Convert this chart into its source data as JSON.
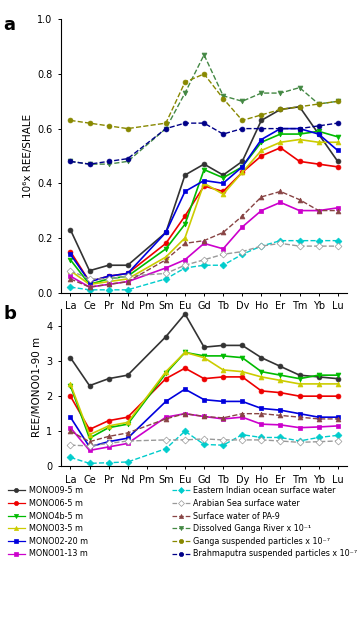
{
  "elements": [
    "La",
    "Ce",
    "Pr",
    "Nd",
    "Pm",
    "Sm",
    "Eu",
    "Gd",
    "Tb",
    "Dy",
    "Ho",
    "Er",
    "Tm",
    "Yb",
    "Lu"
  ],
  "panel_a": {
    "ylabel": "10⁶x REE/SHALE",
    "ylim": [
      0,
      1.0
    ],
    "yticks": [
      0.0,
      0.2,
      0.4,
      0.6,
      0.8,
      1.0
    ],
    "series": {
      "MONO09_5m": [
        0.23,
        0.08,
        0.1,
        0.1,
        null,
        0.22,
        0.43,
        0.47,
        0.43,
        0.48,
        0.63,
        0.67,
        0.68,
        0.58,
        0.48
      ],
      "MONO06_5m": [
        0.15,
        0.04,
        0.06,
        0.07,
        null,
        0.18,
        0.28,
        0.39,
        0.37,
        0.44,
        0.5,
        0.53,
        0.48,
        0.47,
        0.46
      ],
      "MONO4b_5m": [
        0.12,
        0.03,
        0.05,
        0.06,
        null,
        0.16,
        0.25,
        0.45,
        0.42,
        0.46,
        0.55,
        0.58,
        0.58,
        0.59,
        0.57
      ],
      "MONO03_5m": [
        0.08,
        0.03,
        0.04,
        0.05,
        null,
        0.13,
        0.2,
        0.4,
        0.36,
        0.44,
        0.52,
        0.55,
        0.56,
        0.55,
        0.55
      ],
      "MONO02_20m": [
        0.14,
        0.04,
        0.06,
        0.07,
        null,
        0.22,
        0.37,
        0.41,
        0.4,
        0.46,
        0.56,
        0.6,
        0.6,
        0.58,
        0.52
      ],
      "MONO01_13m": [
        0.06,
        0.02,
        0.03,
        0.04,
        null,
        0.09,
        0.12,
        0.18,
        0.16,
        0.24,
        0.3,
        0.33,
        0.3,
        0.3,
        0.31
      ],
      "EasternIndian": [
        0.02,
        0.01,
        0.01,
        0.01,
        null,
        0.05,
        0.09,
        0.1,
        0.1,
        0.14,
        0.17,
        0.19,
        0.19,
        0.19,
        0.19
      ],
      "ArabianSea": [
        0.08,
        0.05,
        0.05,
        0.06,
        null,
        0.07,
        0.1,
        0.12,
        0.14,
        0.15,
        0.17,
        0.18,
        0.17,
        0.17,
        0.17
      ],
      "PA9": [
        0.05,
        0.02,
        0.03,
        0.04,
        null,
        0.12,
        0.18,
        0.19,
        0.22,
        0.28,
        0.35,
        0.37,
        0.34,
        0.3,
        0.3
      ],
      "GangaDissolved": [
        0.48,
        0.47,
        0.47,
        0.48,
        null,
        0.6,
        0.73,
        0.87,
        0.72,
        0.7,
        0.73,
        0.73,
        0.75,
        0.69,
        0.7
      ],
      "GangaSuspended": [
        0.63,
        0.62,
        0.61,
        0.6,
        null,
        0.62,
        0.77,
        0.8,
        0.71,
        0.63,
        0.65,
        0.67,
        0.68,
        0.69,
        0.7
      ],
      "Brahmaputra": [
        0.48,
        0.47,
        0.48,
        0.49,
        null,
        0.6,
        0.62,
        0.62,
        0.58,
        0.6,
        0.6,
        0.6,
        0.6,
        0.61,
        0.62
      ]
    }
  },
  "panel_b": {
    "ylabel": "REE/MONO01-90 m",
    "ylim": [
      0,
      4.5
    ],
    "yticks": [
      0,
      1,
      2,
      3,
      4
    ],
    "series": {
      "MONO09_5m": [
        3.1,
        2.3,
        2.5,
        2.6,
        null,
        3.7,
        4.35,
        3.4,
        3.45,
        3.45,
        3.1,
        2.85,
        2.6,
        2.55,
        2.5
      ],
      "MONO06_5m": [
        2.0,
        1.05,
        1.3,
        1.4,
        null,
        2.5,
        2.8,
        2.5,
        2.55,
        2.55,
        2.15,
        2.1,
        2.0,
        2.0,
        2.0
      ],
      "MONO4b_5m": [
        2.3,
        0.8,
        1.1,
        1.2,
        null,
        2.65,
        3.25,
        3.15,
        3.15,
        3.1,
        2.7,
        2.6,
        2.5,
        2.6,
        2.6
      ],
      "MONO03_5m": [
        2.35,
        0.9,
        1.15,
        1.25,
        null,
        2.7,
        3.25,
        3.1,
        2.75,
        2.7,
        2.55,
        2.45,
        2.35,
        2.35,
        2.35
      ],
      "MONO02_20m": [
        1.4,
        0.55,
        0.7,
        0.8,
        null,
        1.85,
        2.2,
        1.9,
        1.85,
        1.85,
        1.65,
        1.6,
        1.5,
        1.4,
        1.4
      ],
      "MONO01_13m": [
        1.1,
        0.45,
        0.55,
        0.65,
        null,
        1.4,
        1.5,
        1.42,
        1.35,
        1.4,
        1.2,
        1.18,
        1.1,
        1.12,
        1.15
      ],
      "PA9": [
        1.0,
        0.7,
        0.85,
        0.95,
        null,
        1.35,
        1.5,
        1.42,
        1.38,
        1.5,
        1.5,
        1.45,
        1.4,
        1.35,
        1.35
      ],
      "EasternIndian": [
        0.25,
        0.08,
        0.1,
        0.12,
        null,
        0.5,
        1.0,
        0.62,
        0.6,
        0.9,
        0.82,
        0.82,
        0.72,
        0.82,
        0.88
      ],
      "ArabianSea": [
        0.6,
        0.58,
        0.65,
        0.72,
        null,
        0.75,
        0.75,
        0.78,
        0.75,
        0.75,
        0.75,
        0.72,
        0.68,
        0.7,
        0.72
      ]
    }
  },
  "series_styles": {
    "MONO09_5m": {
      "color": "#333333",
      "marker": "o",
      "linestyle": "-",
      "linewidth": 1.2,
      "markersize": 3.5,
      "mfc": "#333333"
    },
    "MONO06_5m": {
      "color": "#ee0000",
      "marker": "o",
      "linestyle": "-",
      "linewidth": 1.2,
      "markersize": 3.5,
      "mfc": "#ee0000"
    },
    "MONO4b_5m": {
      "color": "#00bb00",
      "marker": "v",
      "linestyle": "-",
      "linewidth": 1.2,
      "markersize": 3.5,
      "mfc": "#00bb00"
    },
    "MONO03_5m": {
      "color": "#cccc00",
      "marker": "^",
      "linestyle": "-",
      "linewidth": 1.2,
      "markersize": 3.5,
      "mfc": "#cccc00"
    },
    "MONO02_20m": {
      "color": "#0000dd",
      "marker": "s",
      "linestyle": "-",
      "linewidth": 1.2,
      "markersize": 3.5,
      "mfc": "#0000dd"
    },
    "MONO01_13m": {
      "color": "#cc00cc",
      "marker": "s",
      "linestyle": "-",
      "linewidth": 1.2,
      "markersize": 3.5,
      "mfc": "#cc00cc"
    },
    "EasternIndian": {
      "color": "#00cccc",
      "marker": "D",
      "linestyle": "--",
      "linewidth": 1.0,
      "markersize": 3.5,
      "mfc": "#00cccc"
    },
    "ArabianSea": {
      "color": "#999999",
      "marker": "D",
      "linestyle": "--",
      "linewidth": 1.0,
      "markersize": 3.5,
      "mfc": "white"
    },
    "PA9": {
      "color": "#884444",
      "marker": "^",
      "linestyle": "--",
      "linewidth": 1.0,
      "markersize": 3.5,
      "mfc": "#884444"
    },
    "GangaDissolved": {
      "color": "#448844",
      "marker": "v",
      "linestyle": "--",
      "linewidth": 1.0,
      "markersize": 3.5,
      "mfc": "#448844"
    },
    "GangaSuspended": {
      "color": "#888800",
      "marker": "o",
      "linestyle": "--",
      "linewidth": 1.0,
      "markersize": 3.5,
      "mfc": "#888800"
    },
    "Brahmaputra": {
      "color": "#000088",
      "marker": "o",
      "linestyle": "--",
      "linewidth": 1.0,
      "markersize": 3.5,
      "mfc": "#000088"
    }
  },
  "legend_left": [
    {
      "label": "MONO09-5 m",
      "key": "MONO09_5m"
    },
    {
      "label": "MONO06-5 m",
      "key": "MONO06_5m"
    },
    {
      "label": "MONO4b-5 m",
      "key": "MONO4b_5m"
    },
    {
      "label": "MONO03-5 m",
      "key": "MONO03_5m"
    },
    {
      "label": "MONO02-20 m",
      "key": "MONO02_20m"
    },
    {
      "label": "MONO01-13 m",
      "key": "MONO01_13m"
    }
  ],
  "legend_right": [
    {
      "label": "Eastern Indian ocean surface water",
      "key": "EasternIndian"
    },
    {
      "label": "Arabian Sea surface water",
      "key": "ArabianSea"
    },
    {
      "label": "Surface water of PA-9",
      "key": "PA9"
    },
    {
      "label": "Dissolved Ganga River x 10⁻¹",
      "key": "GangaDissolved"
    },
    {
      "label": "Ganga suspended particles x 10⁻⁷",
      "key": "GangaSuspended"
    },
    {
      "label": "Brahmaputra suspended particles x 10⁻⁷",
      "key": "Brahmaputra"
    }
  ]
}
